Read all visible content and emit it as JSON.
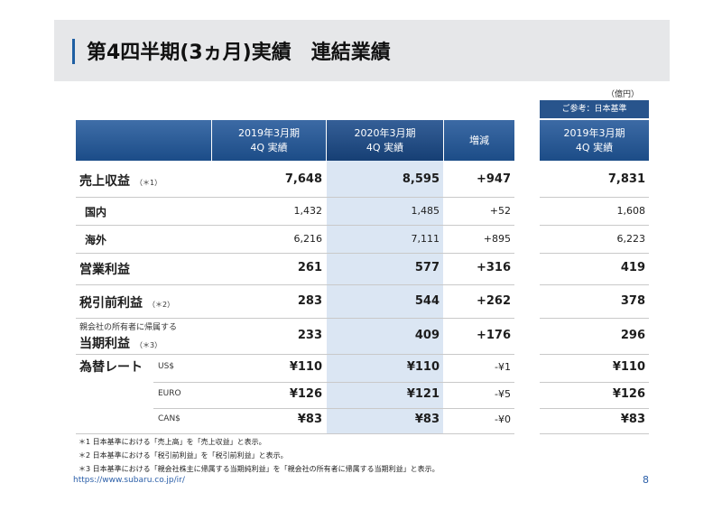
{
  "title": "第4四半期(3ヵ月)実績　連結業績",
  "unit": "（億円）",
  "ref_tag": "ご参考：日本基準",
  "headers": {
    "col_a": [
      "2019年3月期",
      "4Q 実績"
    ],
    "col_b": [
      "2020年3月期",
      "4Q 実績"
    ],
    "col_c": "増減",
    "col_ref": [
      "2019年3月期",
      "4Q 実績"
    ]
  },
  "rows": [
    {
      "label": "売上収益",
      "note": "（＊1）",
      "a": "7,648",
      "b": "8,595",
      "c": "+947",
      "ref": "7,831"
    },
    {
      "label": "国内",
      "a": "1,432",
      "b": "1,485",
      "c": "+52",
      "ref": "1,608"
    },
    {
      "label": "海外",
      "a": "6,216",
      "b": "7,111",
      "c": "+895",
      "ref": "6,223"
    },
    {
      "label": "営業利益",
      "a": "261",
      "b": "577",
      "c": "+316",
      "ref": "419"
    },
    {
      "label": "税引前利益",
      "note": "（＊2）",
      "a": "283",
      "b": "544",
      "c": "+262",
      "ref": "378"
    },
    {
      "label_small": "親会社の所有者に帰属する",
      "label": "当期利益",
      "note": "（＊3）",
      "a": "233",
      "b": "409",
      "c": "+176",
      "ref": "296"
    }
  ],
  "fx": {
    "label": "為替レート",
    "rows": [
      {
        "currency": "US$",
        "a": "¥110",
        "b": "¥110",
        "c": "-¥1",
        "ref": "¥110"
      },
      {
        "currency": "EURO",
        "a": "¥126",
        "b": "¥121",
        "c": "-¥5",
        "ref": "¥126"
      },
      {
        "currency": "CAN$",
        "a": "¥83",
        "b": "¥83",
        "c": "-¥0",
        "ref": "¥83"
      }
    ]
  },
  "notes": [
    "＊1 日本基準における「売上高」を「売上収益」と表示。",
    "＊2 日本基準における「税引前利益」を「税引前利益」と表示。",
    "＊3 日本基準における「親会社株主に帰属する当期純利益」を「親会社の所有者に帰属する当期利益」と表示。"
  ],
  "footer_url": "https://www.subaru.co.jp/ir/",
  "page_number": "8",
  "colors": {
    "header_blue": "#1c4c87",
    "accent_blue": "#1f5fa3",
    "highlight": "#dbe6f3"
  }
}
